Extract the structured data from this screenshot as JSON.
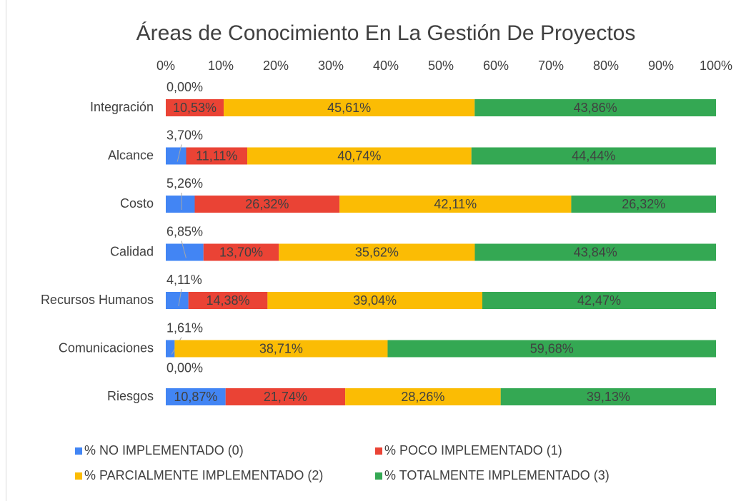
{
  "chart_data": {
    "type": "stacked-bar-horizontal",
    "title": "Áreas de Conocimiento En La Gestión De Proyectos",
    "categories": [
      "Integración",
      "Alcance",
      "Costo",
      "Calidad",
      "Recursos Humanos",
      "Comunicaciones",
      "Riesgos"
    ],
    "series": [
      {
        "name": "% NO IMPLEMENTADO (0)",
        "color": "#4285f4",
        "values": [
          0,
          3.7,
          5.26,
          6.85,
          4.11,
          1.61,
          10.87
        ],
        "value_labels": [
          "0,00%",
          "3,70%",
          "5,26%",
          "6,85%",
          "4,11%",
          "1,61%",
          "10,87%"
        ]
      },
      {
        "name": "% POCO IMPLEMENTADO (1)",
        "color": "#ea4335",
        "values": [
          10.53,
          11.11,
          26.32,
          13.7,
          14.38,
          0,
          21.74
        ],
        "value_labels": [
          "10,53%",
          "11,11%",
          "26,32%",
          "13,70%",
          "14,38%",
          "0,00%",
          "21,74%"
        ]
      },
      {
        "name": "% PARCIALMENTE IMPLEMENTADO (2)",
        "color": "#fbbc04",
        "values": [
          45.61,
          40.74,
          42.11,
          35.62,
          39.04,
          38.71,
          28.26
        ],
        "value_labels": [
          "45,61%",
          "40,74%",
          "42,11%",
          "35,62%",
          "39,04%",
          "38,71%",
          "28,26%"
        ]
      },
      {
        "name": "% TOTALMENTE IMPLEMENTADO (3)",
        "color": "#34a853",
        "values": [
          43.86,
          44.44,
          26.32,
          43.84,
          42.47,
          59.68,
          39.13
        ],
        "value_labels": [
          "43,86%",
          "44,44%",
          "26,32%",
          "43,84%",
          "42,47%",
          "59,68%",
          "39,13%"
        ]
      }
    ],
    "xlim": [
      0,
      100
    ],
    "xticks": [
      {
        "value": 0,
        "label": "0%"
      },
      {
        "value": 10,
        "label": "10%"
      },
      {
        "value": 20,
        "label": "20%"
      },
      {
        "value": 30,
        "label": "30%"
      },
      {
        "value": 40,
        "label": "40%"
      },
      {
        "value": 50,
        "label": "50%"
      },
      {
        "value": 60,
        "label": "60%"
      },
      {
        "value": 70,
        "label": "70%"
      },
      {
        "value": 80,
        "label": "80%"
      },
      {
        "value": 90,
        "label": "90%"
      },
      {
        "value": 100,
        "label": "100%"
      }
    ],
    "legend": "bottom"
  }
}
